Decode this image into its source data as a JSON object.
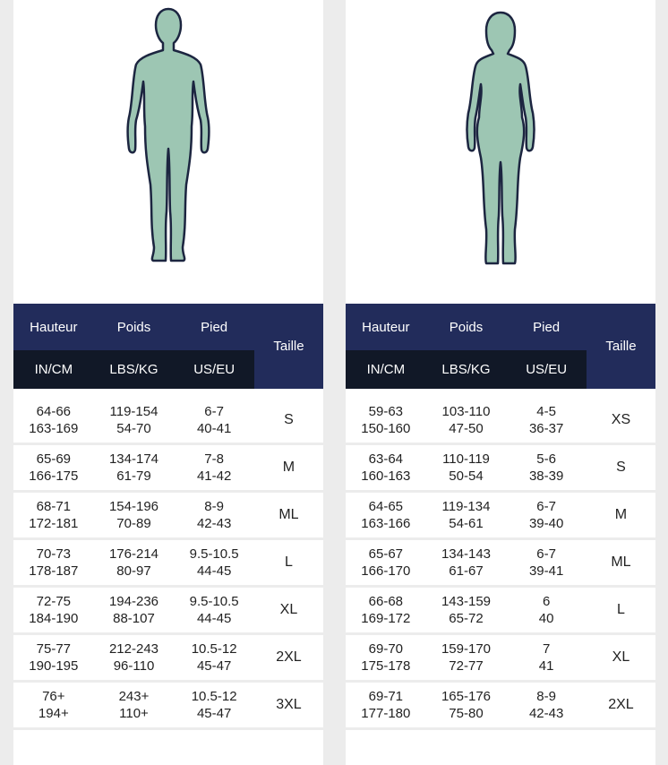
{
  "colors": {
    "header_bg": "#222c5b",
    "subheader_bg": "#111827",
    "figure_fill": "#9dc6b3",
    "figure_stroke": "#1c2540",
    "page_bg": "#ececec"
  },
  "tables": [
    {
      "figure_icon": "male-silhouette-icon",
      "headers": {
        "col1": "Hauteur",
        "col2": "Poids",
        "col3": "Pied",
        "size": "Taille"
      },
      "units": {
        "col1": "IN/CM",
        "col2": "LBS/KG",
        "col3": "US/EU"
      },
      "rows": [
        {
          "h1": "64-66",
          "h2": "163-169",
          "w1": "119-154",
          "w2": "54-70",
          "f1": "6-7",
          "f2": "40-41",
          "size": "S"
        },
        {
          "h1": "65-69",
          "h2": "166-175",
          "w1": "134-174",
          "w2": "61-79",
          "f1": "7-8",
          "f2": "41-42",
          "size": "M"
        },
        {
          "h1": "68-71",
          "h2": "172-181",
          "w1": "154-196",
          "w2": "70-89",
          "f1": "8-9",
          "f2": "42-43",
          "size": "ML"
        },
        {
          "h1": "70-73",
          "h2": "178-187",
          "w1": "176-214",
          "w2": "80-97",
          "f1": "9.5-10.5",
          "f2": "44-45",
          "size": "L"
        },
        {
          "h1": "72-75",
          "h2": "184-190",
          "w1": "194-236",
          "w2": "88-107",
          "f1": "9.5-10.5",
          "f2": "44-45",
          "size": "XL"
        },
        {
          "h1": "75-77",
          "h2": "190-195",
          "w1": "212-243",
          "w2": "96-110",
          "f1": "10.5-12",
          "f2": "45-47",
          "size": "2XL"
        },
        {
          "h1": "76+",
          "h2": "194+",
          "w1": "243+",
          "w2": "110+",
          "f1": "10.5-12",
          "f2": "45-47",
          "size": "3XL"
        }
      ]
    },
    {
      "figure_icon": "female-silhouette-icon",
      "headers": {
        "col1": "Hauteur",
        "col2": "Poids",
        "col3": "Pied",
        "size": "Taille"
      },
      "units": {
        "col1": "IN/CM",
        "col2": "LBS/KG",
        "col3": "US/EU"
      },
      "rows": [
        {
          "h1": "59-63",
          "h2": "150-160",
          "w1": "103-110",
          "w2": "47-50",
          "f1": "4-5",
          "f2": "36-37",
          "size": "XS"
        },
        {
          "h1": "63-64",
          "h2": "160-163",
          "w1": "110-119",
          "w2": "50-54",
          "f1": "5-6",
          "f2": "38-39",
          "size": "S"
        },
        {
          "h1": "64-65",
          "h2": "163-166",
          "w1": "119-134",
          "w2": "54-61",
          "f1": "6-7",
          "f2": "39-40",
          "size": "M"
        },
        {
          "h1": "65-67",
          "h2": "166-170",
          "w1": "134-143",
          "w2": "61-67",
          "f1": "6-7",
          "f2": "39-41",
          "size": "ML"
        },
        {
          "h1": "66-68",
          "h2": "169-172",
          "w1": "143-159",
          "w2": "65-72",
          "f1": "6",
          "f2": "40",
          "size": "L"
        },
        {
          "h1": "69-70",
          "h2": "175-178",
          "w1": "159-170",
          "w2": "72-77",
          "f1": "7",
          "f2": "41",
          "size": "XL"
        },
        {
          "h1": "69-71",
          "h2": "177-180",
          "w1": "165-176",
          "w2": "75-80",
          "f1": "8-9",
          "f2": "42-43",
          "size": "2XL"
        }
      ]
    }
  ]
}
